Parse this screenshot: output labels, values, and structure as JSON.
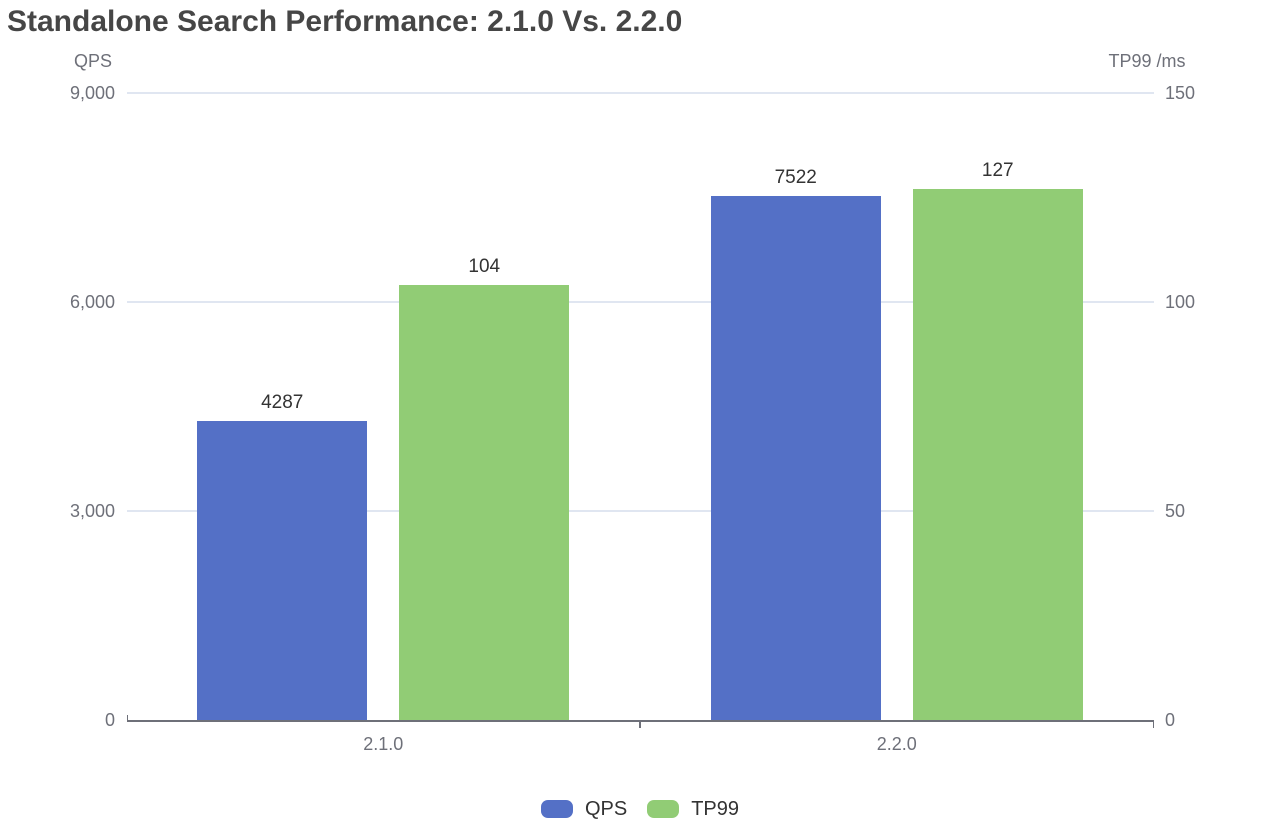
{
  "chart_data": {
    "type": "bar",
    "title": "Standalone Search Performance: 2.1.0 Vs. 2.2.0",
    "categories": [
      "2.1.0",
      "2.2.0"
    ],
    "series": [
      {
        "name": "QPS",
        "axis": "left",
        "color": "#5470C6",
        "values": [
          4287,
          7522
        ],
        "labels": [
          "4287",
          "7522"
        ]
      },
      {
        "name": "TP99",
        "axis": "right",
        "color": "#91CC75",
        "values": [
          104,
          127
        ],
        "labels": [
          "104",
          "127"
        ]
      }
    ],
    "left_axis": {
      "name": "QPS",
      "min": 0,
      "max": 9000,
      "tick_values": [
        0,
        3000,
        6000,
        9000
      ],
      "tick_labels": [
        "0",
        "3,000",
        "6,000",
        "9,000"
      ]
    },
    "right_axis": {
      "name": "TP99 /ms",
      "min": 0,
      "max": 150,
      "tick_values": [
        0,
        50,
        100,
        150
      ],
      "tick_labels": [
        "0",
        "50",
        "100",
        "150"
      ]
    },
    "legend": {
      "position": "bottom",
      "items": [
        {
          "label": "QPS",
          "color": "#5470C6"
        },
        {
          "label": "TP99",
          "color": "#91CC75"
        }
      ]
    },
    "grid": {
      "show": true,
      "line_color": "#E0E6F1"
    },
    "style": {
      "title_color": "#464646",
      "axis_line_color": "#6E7079",
      "axis_label_color": "#6E7079",
      "data_label_color": "#333333",
      "legend_text_color": "#333333",
      "background": "#FFFFFF"
    }
  }
}
